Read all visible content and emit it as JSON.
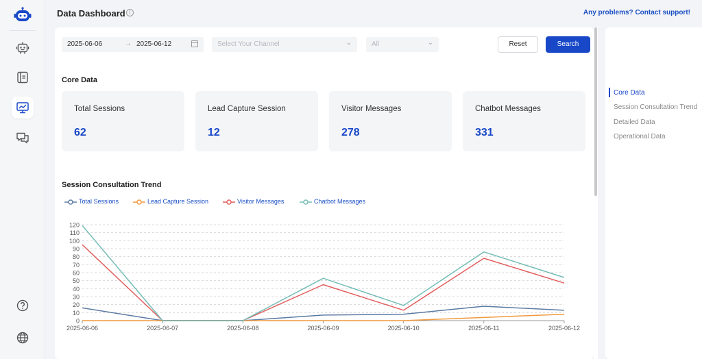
{
  "header": {
    "title": "Data Dashboard",
    "support_link": "Any problems? Contact support!"
  },
  "sidebar": {
    "items": [
      {
        "icon": "robot-icon"
      },
      {
        "icon": "knowledge-base-icon"
      },
      {
        "icon": "dashboard-icon",
        "active": true
      },
      {
        "icon": "chat-icon"
      },
      {
        "icon": "help-icon"
      },
      {
        "icon": "globe-icon"
      }
    ]
  },
  "filters": {
    "start_date": "2025-06-06",
    "end_date": "2025-06-12",
    "channel_placeholder": "Select Your Channel",
    "scope_value": "All",
    "reset_label": "Reset",
    "search_label": "Search"
  },
  "core": {
    "title": "Core Data",
    "cards": [
      {
        "label": "Total Sessions",
        "value": "62"
      },
      {
        "label": "Lead Capture Session",
        "value": "12"
      },
      {
        "label": "Visitor Messages",
        "value": "278"
      },
      {
        "label": "Chatbot Messages",
        "value": "331"
      }
    ]
  },
  "trend": {
    "title": "Session Consultation Trend"
  },
  "anchor_nav": {
    "items": [
      {
        "label": "Core Data",
        "active": true
      },
      {
        "label": "Session Consultation Trend"
      },
      {
        "label": "Detailed Data"
      },
      {
        "label": "Operational Data"
      }
    ]
  },
  "colors": {
    "accent": "#1848c8",
    "total_sessions": "#5b7ba3",
    "lead_capture": "#f0993e",
    "visitor_messages": "#e25d5d",
    "chatbot_messages": "#74bdb5"
  },
  "chart_data": {
    "type": "line",
    "categories": [
      "2025-06-06",
      "2025-06-07",
      "2025-06-08",
      "2025-06-09",
      "2025-06-10",
      "2025-06-11",
      "2025-06-12"
    ],
    "ylim": [
      0,
      120
    ],
    "yticks": [
      0,
      10,
      20,
      30,
      40,
      50,
      60,
      70,
      80,
      90,
      100,
      110,
      120
    ],
    "grid": true,
    "legend_position": "top-left",
    "series": [
      {
        "name": "Total Sessions",
        "color": "#5b7ba3",
        "values": [
          16,
          0,
          0,
          7,
          8,
          18,
          13
        ]
      },
      {
        "name": "Lead Capture Session",
        "color": "#f0993e",
        "values": [
          0,
          0,
          0,
          0,
          0,
          4,
          8
        ]
      },
      {
        "name": "Visitor Messages",
        "color": "#e25d5d",
        "values": [
          95,
          0,
          0,
          45,
          13,
          78,
          47
        ]
      },
      {
        "name": "Chatbot Messages",
        "color": "#74bdb5",
        "values": [
          119,
          0,
          0,
          53,
          19,
          86,
          54
        ]
      }
    ]
  }
}
